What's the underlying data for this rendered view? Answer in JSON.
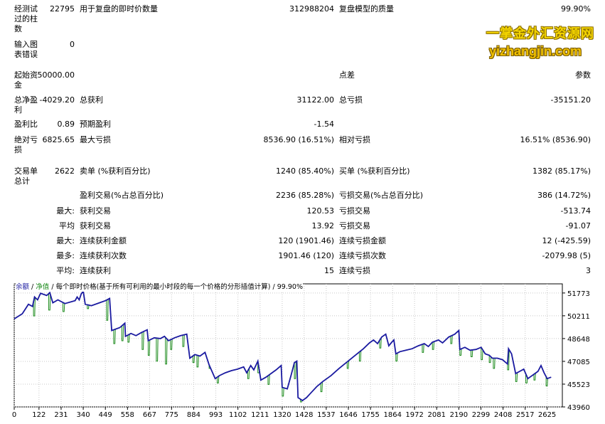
{
  "watermark": {
    "line1": "一掌金外汇资源网",
    "line2": "yizhangjin.com"
  },
  "rows": [
    {
      "id": "bars",
      "label": "经测试过的柱数",
      "value": "22795",
      "l2": "用于复盘的即时价数量",
      "v2": "312988204",
      "l3": "复盘模型的质量",
      "v3": "99.90%"
    },
    {
      "id": "errors",
      "label": "输入图表错误",
      "value": "0"
    },
    {
      "id": "deposit",
      "label": "起始资金",
      "value": "50000.00",
      "l3": "点差",
      "v3": "参数"
    },
    {
      "id": "net",
      "label": "总净盈利",
      "value": "-4029.20",
      "l2": "总获利",
      "v2": "31122.00",
      "l3": "总亏损",
      "v3": "-35151.20"
    },
    {
      "id": "pf",
      "label": "盈利比",
      "value": "0.89",
      "l2": "预期盈利",
      "v2": "-1.54"
    },
    {
      "id": "dd",
      "label": "绝对亏损",
      "value": "6825.65",
      "l2": "最大亏损",
      "v2": "8536.90 (16.51%)",
      "l3": "相对亏损",
      "v3": "16.51% (8536.90)"
    },
    {
      "id": "trades",
      "label": "交易单总计",
      "value": "2622",
      "l2": "卖单 (%获利百分比)",
      "v2": "1240 (85.40%)",
      "l3": "买单 (%获利百分比)",
      "v3": "1382 (85.17%)"
    },
    {
      "id": "profit_trades",
      "l2": "盈利交易(%占总百分比)",
      "v2": "2236 (85.28%)",
      "l3": "亏损交易(%占总百分比)",
      "v3": "386 (14.72%)"
    },
    {
      "id": "largest",
      "value": "最大:",
      "l2": "获利交易",
      "v2": "120.53",
      "l3": "亏损交易",
      "v3": "-513.74"
    },
    {
      "id": "average",
      "value": "平均",
      "l2": "获利交易",
      "v2": "13.92",
      "l3": "亏损交易",
      "v3": "-91.07"
    },
    {
      "id": "max_consec",
      "value": "最大:",
      "l2": "连续获利金额",
      "v2": "120 (1901.46)",
      "l3": "连续亏损金额",
      "v3": "12 (-425.59)"
    },
    {
      "id": "maximal_consec",
      "value": "最多:",
      "l2": "连续获利次数",
      "v2": "1901.46 (120)",
      "l3": "连续亏损次数",
      "v3": "-2079.98 (5)"
    },
    {
      "id": "avg_consec",
      "value": "平均:",
      "l2": "连续获利",
      "v2": "15",
      "l3": "连续亏损",
      "v3": "3"
    }
  ],
  "chart_data": {
    "type": "line",
    "title": "每个即时价格(基于所有可利用的最小时段的每一个价格的分形插值计算)",
    "legend": [
      "余额",
      "净值"
    ],
    "quality": "99.90%",
    "series": [
      {
        "name": "余额",
        "color": "#1a1aa0"
      },
      {
        "name": "净值",
        "color": "#1a8a1a"
      }
    ],
    "x_ticks": [
      0,
      122,
      231,
      340,
      449,
      558,
      667,
      775,
      884,
      993,
      1102,
      1211,
      1320,
      1428,
      1537,
      1646,
      1755,
      1864,
      1972,
      2081,
      2190,
      2299,
      2408,
      2517,
      2625
    ],
    "y_ticks": [
      51773,
      50211,
      48648,
      47085,
      45523,
      43960
    ],
    "ylim": [
      43960,
      52400
    ],
    "xlim": [
      0,
      2700
    ],
    "balance_points": [
      [
        0,
        50000
      ],
      [
        40,
        50350
      ],
      [
        70,
        51000
      ],
      [
        90,
        50850
      ],
      [
        100,
        51500
      ],
      [
        115,
        51300
      ],
      [
        130,
        51750
      ],
      [
        160,
        51600
      ],
      [
        175,
        51800
      ],
      [
        190,
        51100
      ],
      [
        215,
        51300
      ],
      [
        250,
        51050
      ],
      [
        300,
        51250
      ],
      [
        310,
        51500
      ],
      [
        320,
        51300
      ],
      [
        330,
        51700
      ],
      [
        340,
        51900
      ],
      [
        350,
        51000
      ],
      [
        380,
        50900
      ],
      [
        420,
        51100
      ],
      [
        450,
        51250
      ],
      [
        470,
        51400
      ],
      [
        480,
        49200
      ],
      [
        520,
        49400
      ],
      [
        545,
        49700
      ],
      [
        548,
        48800
      ],
      [
        575,
        49000
      ],
      [
        600,
        48850
      ],
      [
        625,
        49050
      ],
      [
        655,
        49250
      ],
      [
        660,
        48500
      ],
      [
        690,
        48700
      ],
      [
        720,
        48650
      ],
      [
        740,
        48800
      ],
      [
        760,
        48500
      ],
      [
        790,
        48700
      ],
      [
        820,
        48850
      ],
      [
        850,
        48950
      ],
      [
        865,
        47300
      ],
      [
        890,
        47550
      ],
      [
        915,
        47450
      ],
      [
        940,
        47700
      ],
      [
        960,
        46850
      ],
      [
        990,
        45900
      ],
      [
        1010,
        46100
      ],
      [
        1040,
        46300
      ],
      [
        1070,
        46450
      ],
      [
        1100,
        46550
      ],
      [
        1130,
        46700
      ],
      [
        1145,
        46300
      ],
      [
        1165,
        46800
      ],
      [
        1180,
        46500
      ],
      [
        1200,
        47100
      ],
      [
        1215,
        45800
      ],
      [
        1240,
        46000
      ],
      [
        1270,
        46300
      ],
      [
        1290,
        46500
      ],
      [
        1315,
        46800
      ],
      [
        1320,
        45300
      ],
      [
        1345,
        45200
      ],
      [
        1365,
        46200
      ],
      [
        1380,
        47000
      ],
      [
        1392,
        47100
      ],
      [
        1398,
        44600
      ],
      [
        1420,
        44400
      ],
      [
        1440,
        44600
      ],
      [
        1460,
        44900
      ],
      [
        1490,
        45350
      ],
      [
        1520,
        45700
      ],
      [
        1560,
        46100
      ],
      [
        1600,
        46600
      ],
      [
        1640,
        47050
      ],
      [
        1680,
        47500
      ],
      [
        1720,
        47950
      ],
      [
        1750,
        48350
      ],
      [
        1770,
        48550
      ],
      [
        1790,
        48300
      ],
      [
        1810,
        48750
      ],
      [
        1830,
        48950
      ],
      [
        1845,
        48150
      ],
      [
        1860,
        48400
      ],
      [
        1870,
        48550
      ],
      [
        1880,
        47600
      ],
      [
        1900,
        47750
      ],
      [
        1930,
        47850
      ],
      [
        1960,
        47950
      ],
      [
        1990,
        48150
      ],
      [
        2020,
        48300
      ],
      [
        2040,
        48100
      ],
      [
        2060,
        48400
      ],
      [
        2090,
        48550
      ],
      [
        2110,
        48350
      ],
      [
        2140,
        48750
      ],
      [
        2170,
        48950
      ],
      [
        2190,
        49200
      ],
      [
        2195,
        47900
      ],
      [
        2220,
        48050
      ],
      [
        2245,
        47850
      ],
      [
        2275,
        47900
      ],
      [
        2300,
        48050
      ],
      [
        2320,
        47600
      ],
      [
        2340,
        47500
      ],
      [
        2355,
        47300
      ],
      [
        2380,
        47300
      ],
      [
        2405,
        47200
      ],
      [
        2430,
        46900
      ],
      [
        2435,
        47950
      ],
      [
        2450,
        47600
      ],
      [
        2470,
        46250
      ],
      [
        2490,
        46400
      ],
      [
        2510,
        46550
      ],
      [
        2530,
        45900
      ],
      [
        2545,
        46050
      ],
      [
        2560,
        46200
      ],
      [
        2580,
        46400
      ],
      [
        2595,
        46800
      ],
      [
        2610,
        46300
      ],
      [
        2625,
        45900
      ],
      [
        2645,
        46000
      ]
    ],
    "equity_dips": [
      [
        95,
        50200
      ],
      [
        170,
        50600
      ],
      [
        240,
        50500
      ],
      [
        360,
        50700
      ],
      [
        455,
        49900
      ],
      [
        490,
        48300
      ],
      [
        530,
        48500
      ],
      [
        560,
        48400
      ],
      [
        630,
        47900
      ],
      [
        660,
        47500
      ],
      [
        700,
        47100
      ],
      [
        745,
        46900
      ],
      [
        770,
        47900
      ],
      [
        830,
        48100
      ],
      [
        880,
        47000
      ],
      [
        900,
        46700
      ],
      [
        960,
        46600
      ],
      [
        1000,
        45600
      ],
      [
        1150,
        45900
      ],
      [
        1200,
        46300
      ],
      [
        1250,
        45500
      ],
      [
        1320,
        44700
      ],
      [
        1380,
        45900
      ],
      [
        1410,
        44300
      ],
      [
        1510,
        45000
      ],
      [
        1640,
        46600
      ],
      [
        1700,
        47100
      ],
      [
        1800,
        48000
      ],
      [
        1880,
        47100
      ],
      [
        2010,
        47700
      ],
      [
        2060,
        47900
      ],
      [
        2150,
        48300
      ],
      [
        2195,
        47500
      ],
      [
        2250,
        47400
      ],
      [
        2300,
        47200
      ],
      [
        2340,
        47000
      ],
      [
        2360,
        46600
      ],
      [
        2430,
        46500
      ],
      [
        2470,
        45700
      ],
      [
        2520,
        45600
      ],
      [
        2560,
        45800
      ],
      [
        2620,
        45400
      ]
    ]
  }
}
